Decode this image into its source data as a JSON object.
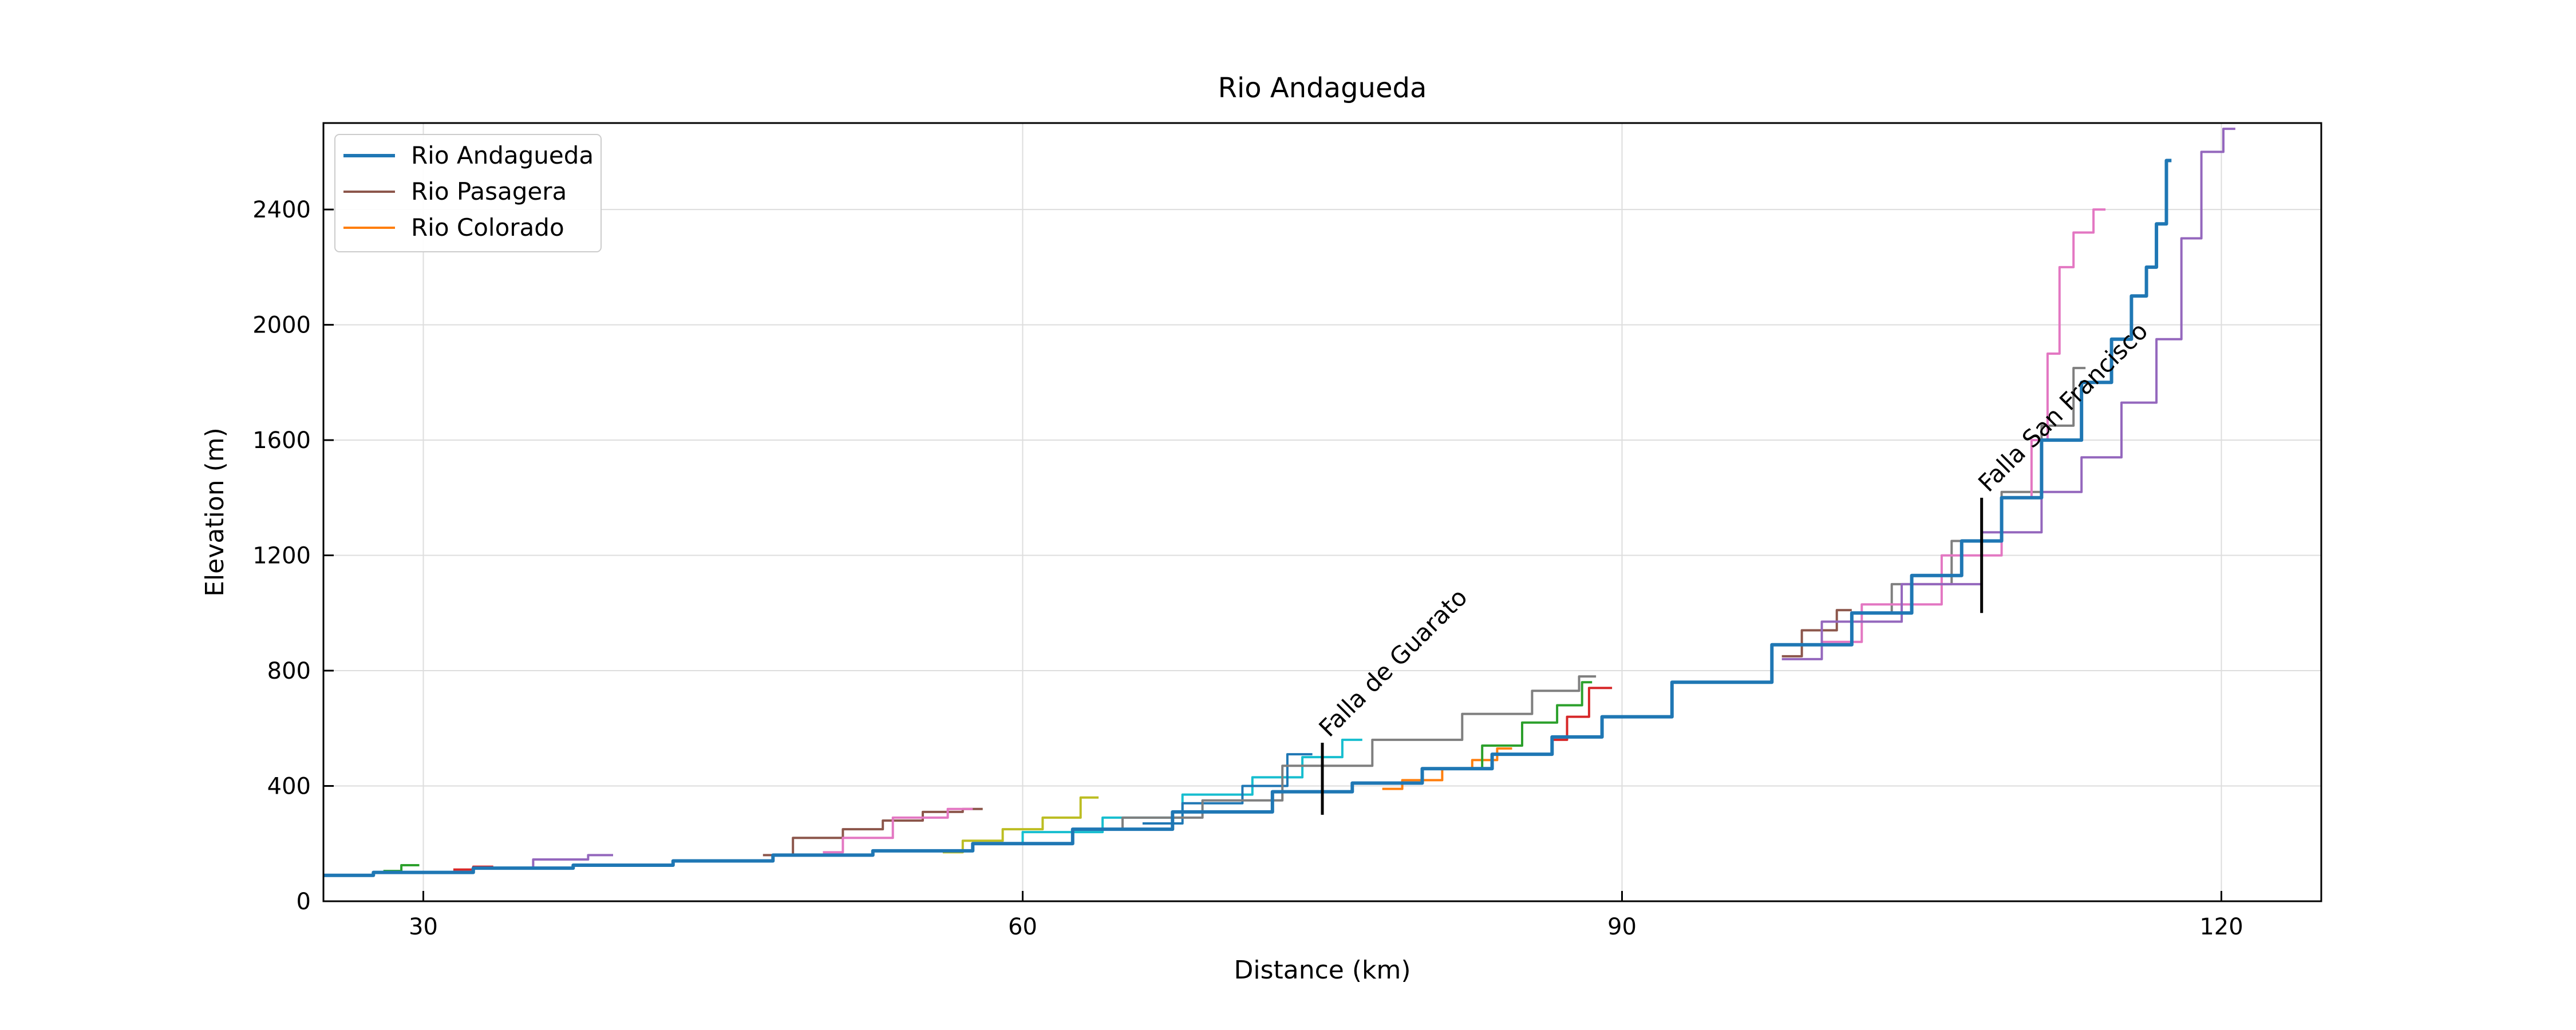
{
  "chart_data": {
    "type": "line",
    "title": "Rio Andagueda",
    "xlabel": "Distance (km)",
    "ylabel": "Elevation (m)",
    "xlim": [
      25,
      125
    ],
    "ylim": [
      0,
      2700
    ],
    "xticks": [
      30,
      60,
      90,
      120
    ],
    "yticks": [
      0,
      400,
      800,
      1200,
      1600,
      2000,
      2400
    ],
    "grid": true,
    "legend_position": "top-left",
    "legend": [
      "Rio Andagueda",
      "Rio Pasagera",
      "Rio Colorado"
    ],
    "annotations": [
      {
        "text": "Falla de Guarato",
        "x": 75.0,
        "ymin": 300,
        "ymax": 550
      },
      {
        "text": "Falla San Francisco",
        "x": 108.0,
        "ymin": 1000,
        "ymax": 1400
      }
    ],
    "series": [
      {
        "name": "Rio Andagueda",
        "color": "#1f77b4",
        "width": 6,
        "x": [
          25,
          30,
          35,
          40,
          45,
          50,
          55,
          60,
          65,
          70,
          75,
          78,
          82,
          85,
          88,
          90,
          95,
          100,
          103,
          106,
          108,
          110,
          112,
          114,
          115,
          116,
          116.5,
          117,
          117.5
        ],
        "y": [
          90,
          100,
          115,
          125,
          140,
          160,
          175,
          200,
          250,
          310,
          380,
          410,
          460,
          510,
          570,
          640,
          760,
          890,
          1000,
          1130,
          1250,
          1400,
          1600,
          1800,
          1950,
          2100,
          2200,
          2350,
          2570
        ]
      },
      {
        "name": "Rio Pasagera",
        "color": "#8c564b",
        "width": 4,
        "x": [
          47,
          50,
          52,
          54,
          56,
          58
        ],
        "y": [
          160,
          220,
          250,
          280,
          310,
          320
        ]
      },
      {
        "name": "Rio Colorado",
        "color": "#ff7f0e",
        "width": 4,
        "x": [
          78,
          80,
          82,
          83,
          84.5
        ],
        "y": [
          390,
          420,
          460,
          490,
          530
        ]
      },
      {
        "color": "#2ca02c",
        "width": 4,
        "x": [
          28,
          29.8
        ],
        "y": [
          105,
          125
        ]
      },
      {
        "color": "#d62728",
        "width": 4,
        "x": [
          31.5,
          33.5
        ],
        "y": [
          110,
          120
        ]
      },
      {
        "color": "#9467bd",
        "width": 4,
        "x": [
          34,
          37,
          39.5
        ],
        "y": [
          115,
          145,
          160
        ]
      },
      {
        "color": "#e377c2",
        "width": 4,
        "x": [
          50,
          52,
          55,
          57.5
        ],
        "y": [
          170,
          220,
          290,
          320
        ]
      },
      {
        "color": "#bcbd22",
        "width": 4,
        "x": [
          56,
          58,
          60,
          62,
          63.8
        ],
        "y": [
          170,
          210,
          250,
          290,
          360
        ]
      },
      {
        "color": "#17becf",
        "width": 4,
        "x": [
          58,
          62,
          66,
          70,
          73,
          75,
          77
        ],
        "y": [
          200,
          240,
          290,
          370,
          430,
          500,
          560
        ]
      },
      {
        "color": "#1f77b4",
        "width": 4,
        "x": [
          66,
          70,
          72,
          74.5
        ],
        "y": [
          270,
          340,
          400,
          510
        ]
      },
      {
        "color": "#7f7f7f",
        "width": 4,
        "x": [
          63,
          67,
          71,
          75,
          80,
          84,
          87,
          88.7
        ],
        "y": [
          250,
          290,
          350,
          470,
          560,
          650,
          730,
          780
        ]
      },
      {
        "color": "#2ca02c",
        "width": 4,
        "x": [
          82,
          84,
          86,
          87.5,
          88.5
        ],
        "y": [
          460,
          540,
          620,
          680,
          760
        ]
      },
      {
        "color": "#d62728",
        "width": 4,
        "x": [
          86.5,
          88,
          88.7,
          89.5
        ],
        "y": [
          560,
          640,
          740,
          740
        ]
      },
      {
        "color": "#8c564b",
        "width": 4,
        "x": [
          98,
          100,
          101.5
        ],
        "y": [
          850,
          940,
          1010
        ]
      },
      {
        "color": "#7f7f7f",
        "width": 4,
        "x": [
          102,
          105,
          108,
          110,
          112,
          113.2
        ],
        "y": [
          1000,
          1100,
          1250,
          1420,
          1650,
          1850
        ]
      },
      {
        "color": "#e377c2",
        "width": 4,
        "x": [
          100,
          104,
          108,
          110,
          111,
          111.6,
          112.2,
          113,
          114.2
        ],
        "y": [
          900,
          1030,
          1200,
          1400,
          1600,
          1900,
          2200,
          2320,
          2400
        ]
      },
      {
        "color": "#9467bd",
        "width": 4,
        "x": [
          98,
          102,
          106,
          110,
          112,
          114,
          116,
          117.5,
          118.5,
          119.5,
          120.7
        ],
        "y": [
          840,
          970,
          1100,
          1280,
          1420,
          1540,
          1730,
          1950,
          2300,
          2600,
          2680
        ]
      }
    ]
  }
}
